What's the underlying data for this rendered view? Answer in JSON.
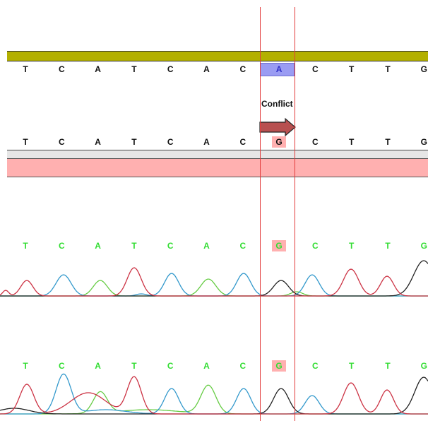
{
  "alignment": {
    "reference_sequence": [
      "T",
      "C",
      "A",
      "T",
      "C",
      "A",
      "C",
      "A",
      "C",
      "T",
      "T",
      "G"
    ],
    "read_sequence": [
      "T",
      "C",
      "A",
      "T",
      "C",
      "A",
      "C",
      "G",
      "C",
      "T",
      "T",
      "G"
    ],
    "conflict_index": 7,
    "conflict_label": "Conflict"
  },
  "chromatograms": [
    {
      "bases": [
        "T",
        "C",
        "A",
        "T",
        "C",
        "A",
        "C",
        "G",
        "C",
        "T",
        "T",
        "G"
      ],
      "highlight_index": 7
    },
    {
      "bases": [
        "T",
        "C",
        "A",
        "T",
        "C",
        "A",
        "C",
        "G",
        "C",
        "T",
        "T",
        "G"
      ],
      "highlight_index": 7
    }
  ],
  "colors": {
    "reference_bar": "#b3b000",
    "read_bar": "#ffb0b0",
    "selection_line": "#e23b3b",
    "trace_A": "#66cc44",
    "trace_C": "#3399cc",
    "trace_G": "#222222",
    "trace_T": "#cc3344"
  }
}
